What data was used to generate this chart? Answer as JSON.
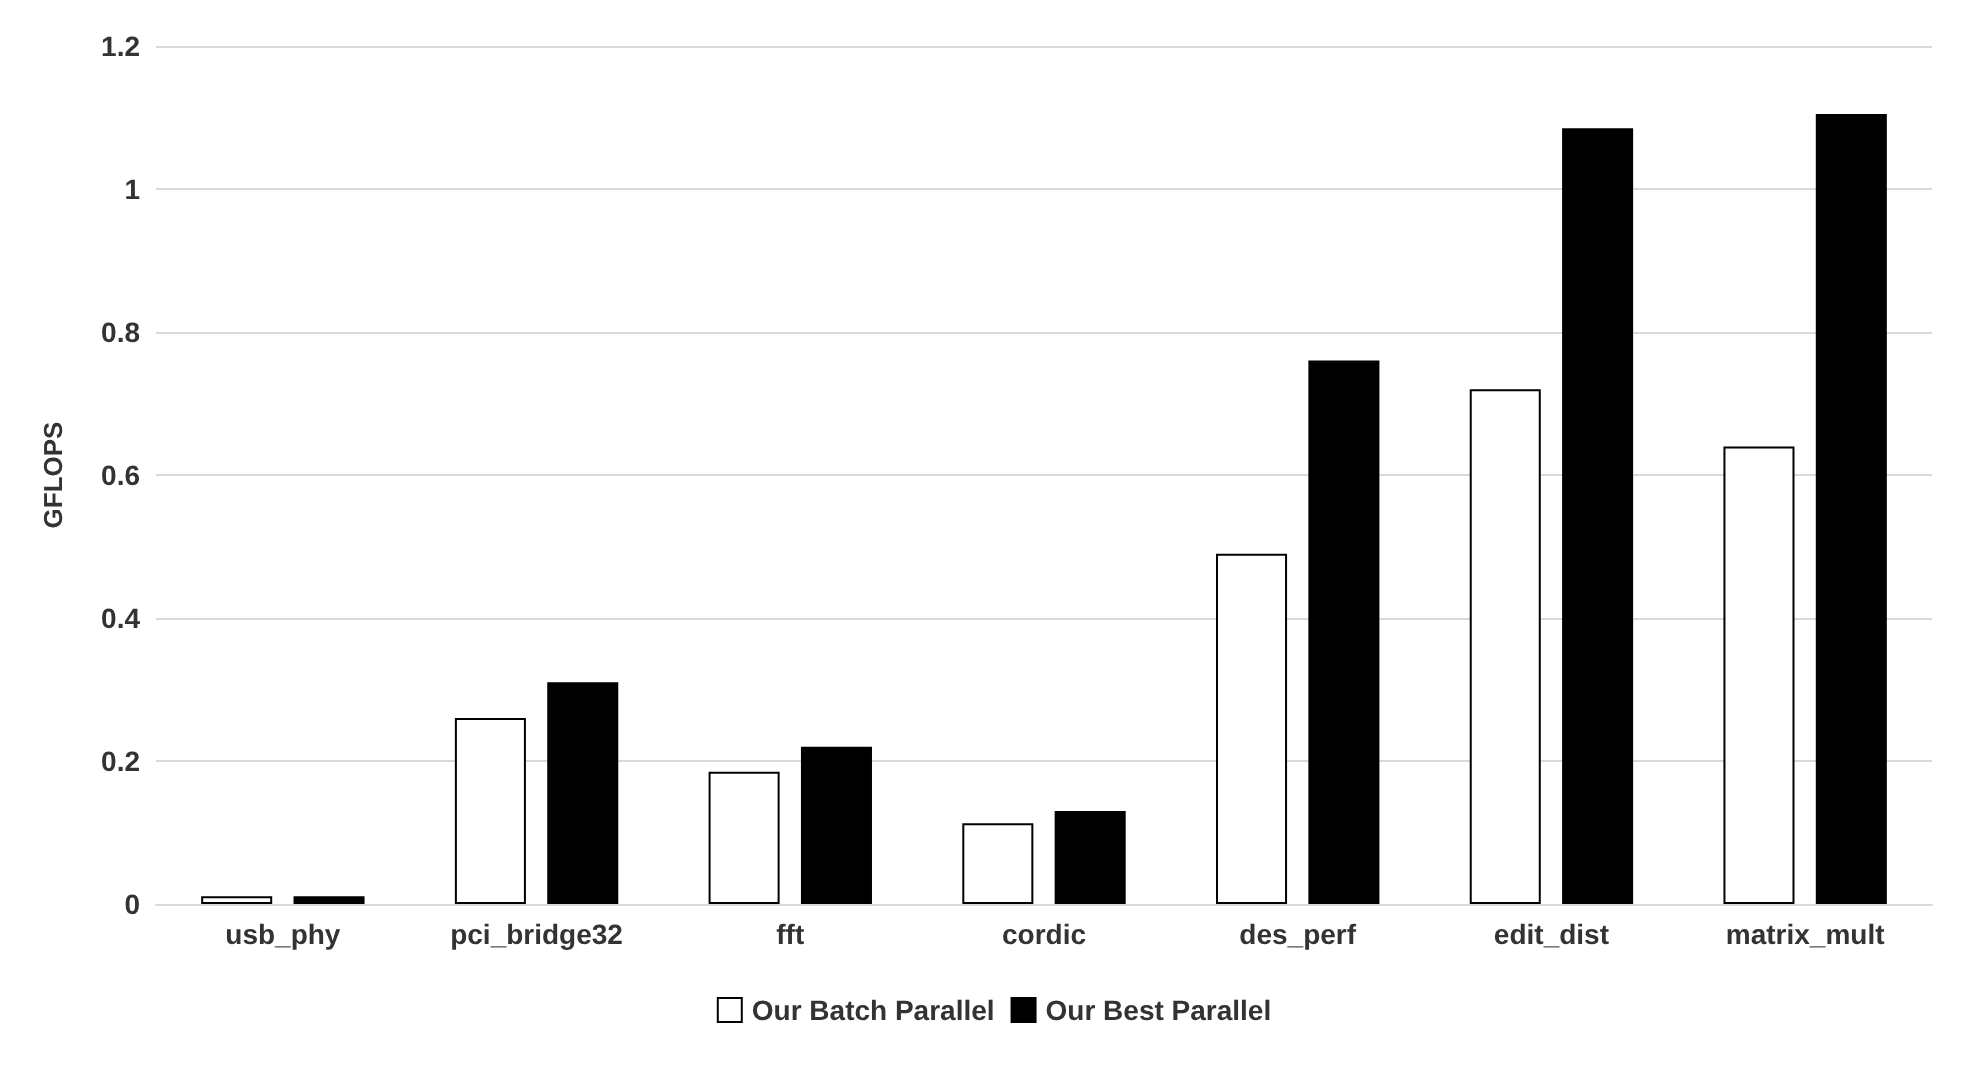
{
  "chart_data": {
    "type": "bar",
    "ylabel": "GFLOPS",
    "categories": [
      "usb_phy",
      "pci_bridge32",
      "fft",
      "cordic",
      "des_perf",
      "edit_dist",
      "matrix_mult"
    ],
    "series": [
      {
        "name": "Our Batch Parallel",
        "color": "#ffffff",
        "values": [
          0.011,
          0.26,
          0.185,
          0.113,
          0.49,
          0.72,
          0.64
        ]
      },
      {
        "name": "Our Best Parallel",
        "color": "#000000",
        "values": [
          0.011,
          0.31,
          0.22,
          0.13,
          0.76,
          1.085,
          1.105
        ]
      }
    ],
    "ylim": [
      0,
      1.2
    ],
    "yticks": [
      0,
      0.2,
      0.4,
      0.6,
      0.8,
      1,
      1.2
    ],
    "grid": "y",
    "legend": "bottom"
  }
}
